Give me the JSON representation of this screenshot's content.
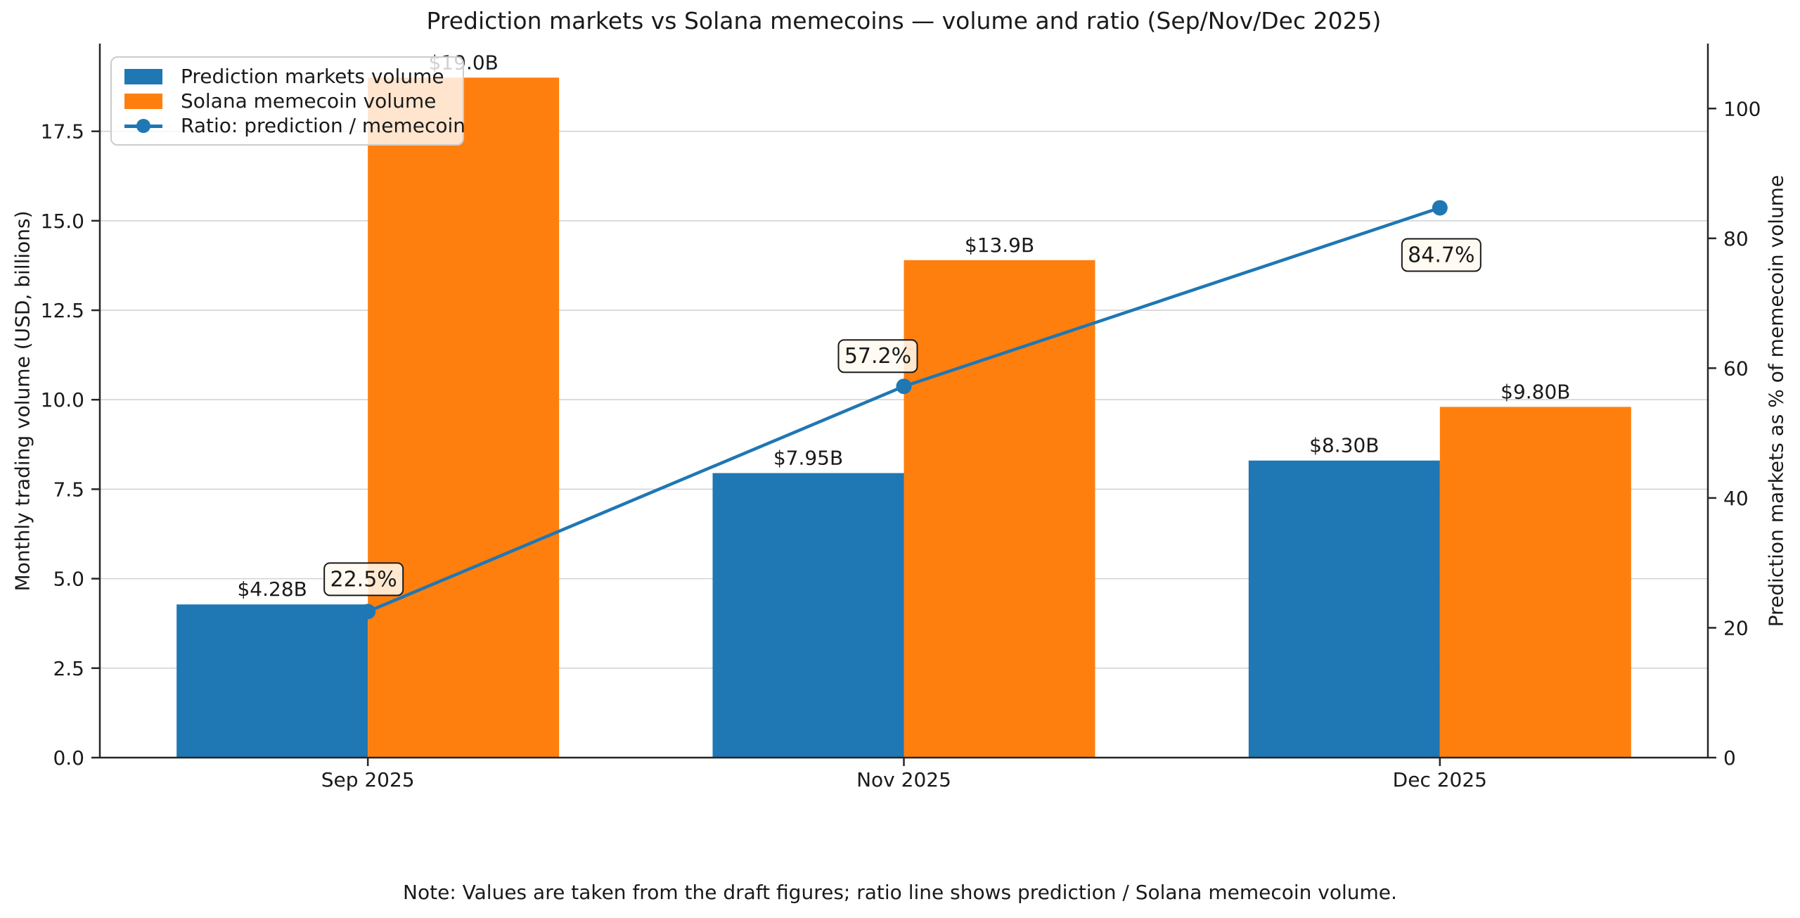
{
  "chart_data": {
    "type": "bar",
    "subtype": "grouped-bars-with-line-overlay",
    "title": "Prediction markets vs Solana memecoins — volume and ratio (Sep/Nov/Dec 2025)",
    "categories": [
      "Sep 2025",
      "Nov 2025",
      "Dec 2025"
    ],
    "bar_series": [
      {
        "name": "Prediction markets volume",
        "color": "#1f77b4",
        "axis": "left",
        "values": [
          4.28,
          7.95,
          8.3
        ],
        "data_labels": [
          "$4.28B",
          "$7.95B",
          "$8.30B"
        ]
      },
      {
        "name": "Solana memecoin volume",
        "color": "#ff7f0e",
        "axis": "left",
        "values": [
          19.0,
          13.9,
          9.8
        ],
        "data_labels": [
          "$19.0B",
          "$13.9B",
          "$9.80B"
        ]
      }
    ],
    "line_series": {
      "name": "Ratio: prediction / memecoin",
      "color": "#1f77b4",
      "axis": "right",
      "values": [
        22.5,
        57.2,
        84.7
      ],
      "data_labels": [
        "22.5%",
        "57.2%",
        "84.7%"
      ]
    },
    "left_axis": {
      "label": "Monthly trading volume (USD, billions)",
      "ticks": [
        0.0,
        2.5,
        5.0,
        7.5,
        10.0,
        12.5,
        15.0,
        17.5
      ],
      "tick_labels": [
        "0.0",
        "2.5",
        "5.0",
        "7.5",
        "10.0",
        "12.5",
        "15.0",
        "17.5"
      ],
      "range": [
        0,
        19.95
      ]
    },
    "right_axis": {
      "label": "Prediction markets as % of memecoin volume",
      "ticks": [
        0,
        20,
        40,
        60,
        80,
        100
      ],
      "tick_labels": [
        "0",
        "20",
        "40",
        "60",
        "80",
        "100"
      ],
      "range": [
        0,
        110
      ]
    },
    "grid": "horizontal",
    "legend_position": "upper-left",
    "note": "Note: Values are taken from the draft figures; ratio line shows prediction / Solana memecoin volume.",
    "colors": {
      "bar_blue": "#1f77b4",
      "bar_orange": "#ff7f0e",
      "line": "#1f77b4",
      "gridline": "#d3d3d3",
      "spine": "#262626",
      "annotation_fill": "#fffaf0",
      "annotation_border": "#1a1a1a"
    }
  }
}
